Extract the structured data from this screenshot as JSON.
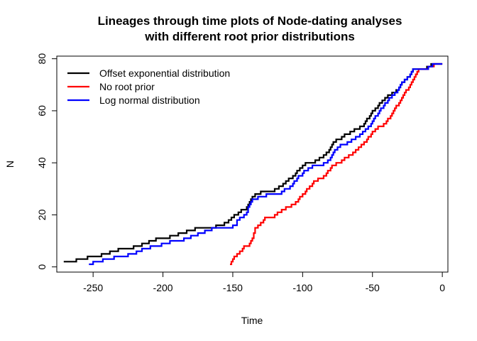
{
  "chart_data": {
    "type": "line",
    "title": [
      "Lineages through time plots of Node-dating analyses",
      "with different root prior distributions"
    ],
    "xlabel": "Time",
    "ylabel": "N",
    "xlim": [
      -276,
      4
    ],
    "ylim": [
      -2,
      81
    ],
    "x_ticks": [
      -250,
      -200,
      -150,
      -100,
      -50,
      0
    ],
    "x_tick_labels": [
      "-250",
      "-200",
      "-150",
      "-100",
      "-50",
      "0"
    ],
    "y_ticks": [
      0,
      20,
      40,
      60,
      80
    ],
    "y_tick_labels": [
      "0",
      "20",
      "40",
      "60",
      "80"
    ],
    "grid": false,
    "legend_position": "top-left",
    "series": [
      {
        "name": "Offset exponential distribution",
        "color": "#000000",
        "points": [
          [
            -271,
            2
          ],
          [
            -262,
            3
          ],
          [
            -254,
            4
          ],
          [
            -244,
            5
          ],
          [
            -238,
            6
          ],
          [
            -232,
            7
          ],
          [
            -221,
            8
          ],
          [
            -215,
            9
          ],
          [
            -210,
            10
          ],
          [
            -205,
            11
          ],
          [
            -195,
            12
          ],
          [
            -189,
            13
          ],
          [
            -183,
            14
          ],
          [
            -177,
            15
          ],
          [
            -162,
            16
          ],
          [
            -156,
            17
          ],
          [
            -153,
            18
          ],
          [
            -151,
            19
          ],
          [
            -149,
            20
          ],
          [
            -146,
            21
          ],
          [
            -144,
            22
          ],
          [
            -140,
            23
          ],
          [
            -139,
            24
          ],
          [
            -138,
            25
          ],
          [
            -137,
            26
          ],
          [
            -136,
            27
          ],
          [
            -134,
            28
          ],
          [
            -130,
            29
          ],
          [
            -120,
            30
          ],
          [
            -117,
            31
          ],
          [
            -114,
            32
          ],
          [
            -112,
            33
          ],
          [
            -110,
            34
          ],
          [
            -107,
            35
          ],
          [
            -105,
            36
          ],
          [
            -104,
            37
          ],
          [
            -102,
            38
          ],
          [
            -100,
            39
          ],
          [
            -98,
            40
          ],
          [
            -91,
            41
          ],
          [
            -88,
            42
          ],
          [
            -85,
            43
          ],
          [
            -83,
            44
          ],
          [
            -81,
            45
          ],
          [
            -80,
            46
          ],
          [
            -79,
            47
          ],
          [
            -78,
            48
          ],
          [
            -76,
            49
          ],
          [
            -72,
            50
          ],
          [
            -70,
            51
          ],
          [
            -66,
            52
          ],
          [
            -63,
            53
          ],
          [
            -59,
            54
          ],
          [
            -56,
            55
          ],
          [
            -55,
            56
          ],
          [
            -54,
            57
          ],
          [
            -52,
            58
          ],
          [
            -51,
            59
          ],
          [
            -50,
            60
          ],
          [
            -48,
            61
          ],
          [
            -46,
            62
          ],
          [
            -45,
            63
          ],
          [
            -43,
            64
          ],
          [
            -41,
            65
          ],
          [
            -39,
            66
          ],
          [
            -36,
            67
          ],
          [
            -33,
            68
          ],
          [
            -31,
            69
          ],
          [
            -30,
            70
          ],
          [
            -29,
            71
          ],
          [
            -27,
            72
          ],
          [
            -25,
            73
          ],
          [
            -23,
            74
          ],
          [
            -22,
            75
          ],
          [
            -21,
            76
          ],
          [
            -11,
            77
          ],
          [
            -8,
            78
          ],
          [
            0,
            78
          ]
        ]
      },
      {
        "name": "No root prior",
        "color": "#ff0000",
        "points": [
          [
            -152,
            1
          ],
          [
            -151,
            2
          ],
          [
            -150,
            3
          ],
          [
            -149,
            4
          ],
          [
            -147,
            5
          ],
          [
            -145,
            6
          ],
          [
            -143,
            7
          ],
          [
            -142,
            8
          ],
          [
            -138,
            9
          ],
          [
            -137,
            10
          ],
          [
            -136,
            11
          ],
          [
            -135,
            13
          ],
          [
            -134,
            15
          ],
          [
            -132,
            16
          ],
          [
            -130,
            17
          ],
          [
            -128,
            18
          ],
          [
            -127,
            19
          ],
          [
            -120,
            20
          ],
          [
            -118,
            21
          ],
          [
            -115,
            22
          ],
          [
            -112,
            23
          ],
          [
            -108,
            24
          ],
          [
            -105,
            25
          ],
          [
            -103,
            26
          ],
          [
            -102,
            27
          ],
          [
            -100,
            28
          ],
          [
            -98,
            29
          ],
          [
            -97,
            30
          ],
          [
            -95,
            31
          ],
          [
            -93,
            32
          ],
          [
            -92,
            33
          ],
          [
            -89,
            34
          ],
          [
            -85,
            35
          ],
          [
            -83,
            36
          ],
          [
            -82,
            37
          ],
          [
            -80,
            38
          ],
          [
            -79,
            39
          ],
          [
            -76,
            40
          ],
          [
            -72,
            41
          ],
          [
            -70,
            42
          ],
          [
            -67,
            43
          ],
          [
            -64,
            44
          ],
          [
            -62,
            45
          ],
          [
            -60,
            46
          ],
          [
            -58,
            47
          ],
          [
            -56,
            48
          ],
          [
            -54,
            49
          ],
          [
            -53,
            50
          ],
          [
            -51,
            51
          ],
          [
            -50,
            52
          ],
          [
            -48,
            53
          ],
          [
            -46,
            54
          ],
          [
            -42,
            55
          ],
          [
            -40,
            56
          ],
          [
            -39,
            57
          ],
          [
            -37,
            58
          ],
          [
            -36,
            59
          ],
          [
            -35,
            60
          ],
          [
            -34,
            61
          ],
          [
            -33,
            62
          ],
          [
            -31,
            63
          ],
          [
            -30,
            64
          ],
          [
            -29,
            65
          ],
          [
            -28,
            66
          ],
          [
            -27,
            67
          ],
          [
            -26,
            68
          ],
          [
            -24,
            69
          ],
          [
            -23,
            70
          ],
          [
            -22,
            71
          ],
          [
            -21,
            72
          ],
          [
            -20,
            73
          ],
          [
            -19,
            74
          ],
          [
            -18,
            75
          ],
          [
            -17,
            76
          ],
          [
            -10,
            77
          ],
          [
            -6,
            78
          ],
          [
            0,
            78
          ]
        ]
      },
      {
        "name": "Log normal distribution",
        "color": "#0000ff",
        "points": [
          [
            -253,
            1
          ],
          [
            -250,
            2
          ],
          [
            -243,
            3
          ],
          [
            -235,
            4
          ],
          [
            -225,
            5
          ],
          [
            -219,
            6
          ],
          [
            -215,
            7
          ],
          [
            -209,
            8
          ],
          [
            -201,
            9
          ],
          [
            -195,
            10
          ],
          [
            -185,
            11
          ],
          [
            -180,
            12
          ],
          [
            -175,
            13
          ],
          [
            -170,
            14
          ],
          [
            -165,
            15
          ],
          [
            -150,
            16
          ],
          [
            -147,
            18
          ],
          [
            -145,
            19
          ],
          [
            -142,
            20
          ],
          [
            -140,
            21
          ],
          [
            -139,
            23
          ],
          [
            -138,
            24
          ],
          [
            -137,
            25
          ],
          [
            -136,
            26
          ],
          [
            -132,
            27
          ],
          [
            -126,
            28
          ],
          [
            -115,
            29
          ],
          [
            -113,
            30
          ],
          [
            -109,
            31
          ],
          [
            -107,
            32
          ],
          [
            -106,
            33
          ],
          [
            -104,
            34
          ],
          [
            -103,
            35
          ],
          [
            -100,
            36
          ],
          [
            -99,
            37
          ],
          [
            -96,
            38
          ],
          [
            -93,
            39
          ],
          [
            -85,
            40
          ],
          [
            -82,
            41
          ],
          [
            -80,
            42
          ],
          [
            -79,
            43
          ],
          [
            -78,
            44
          ],
          [
            -77,
            45
          ],
          [
            -75,
            46
          ],
          [
            -73,
            47
          ],
          [
            -68,
            48
          ],
          [
            -65,
            49
          ],
          [
            -62,
            50
          ],
          [
            -59,
            51
          ],
          [
            -57,
            52
          ],
          [
            -55,
            53
          ],
          [
            -53,
            54
          ],
          [
            -51,
            55
          ],
          [
            -50,
            56
          ],
          [
            -49,
            57
          ],
          [
            -48,
            58
          ],
          [
            -46,
            59
          ],
          [
            -45,
            60
          ],
          [
            -44,
            61
          ],
          [
            -42,
            62
          ],
          [
            -41,
            63
          ],
          [
            -39,
            64
          ],
          [
            -38,
            65
          ],
          [
            -36,
            66
          ],
          [
            -34,
            67
          ],
          [
            -32,
            68
          ],
          [
            -31,
            69
          ],
          [
            -30,
            70
          ],
          [
            -29,
            71
          ],
          [
            -27,
            72
          ],
          [
            -25,
            73
          ],
          [
            -23,
            74
          ],
          [
            -22,
            75
          ],
          [
            -21,
            76
          ],
          [
            -10,
            77
          ],
          [
            -7,
            78
          ],
          [
            0,
            78
          ]
        ]
      }
    ]
  }
}
